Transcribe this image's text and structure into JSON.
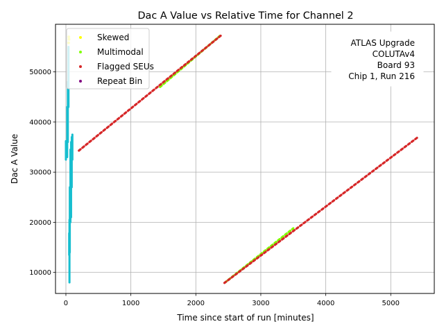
{
  "chart_data": {
    "type": "scatter",
    "title": "Dac A Value vs Relative Time for Channel 2",
    "xlabel": "Time since start of run [minutes]",
    "ylabel": "Dac A Value",
    "xlim": [
      -160,
      5670
    ],
    "ylim": [
      5800,
      59500
    ],
    "x_ticks": [
      0,
      1000,
      2000,
      3000,
      4000,
      5000
    ],
    "y_ticks": [
      10000,
      20000,
      30000,
      40000,
      50000
    ],
    "x_tick_labels": [
      "0",
      "1000",
      "2000",
      "3000",
      "4000",
      "5000"
    ],
    "y_tick_labels": [
      "10000",
      "20000",
      "30000",
      "40000",
      "50000"
    ],
    "grid": true,
    "legend_position": "top-left",
    "annotation": [
      "ATLAS Upgrade",
      "COLUTAv4",
      "Board 93",
      "Chip 1, Run 216"
    ],
    "series": [
      {
        "name": "Skewed",
        "color": "#ffff00",
        "render": "points",
        "points": [
          [
            45,
            57000
          ],
          [
            48,
            56500
          ],
          [
            42,
            55800
          ]
        ]
      },
      {
        "name": "Multimodal",
        "color": "#7fff00",
        "render": "segments",
        "segments": [
          [
            [
              1450,
              47000
            ],
            [
              2380,
              57300
            ]
          ],
          [
            [
              2450,
              8000
            ],
            [
              3500,
              18800
            ]
          ]
        ]
      },
      {
        "name": "Flagged SEUs",
        "color": "#d62728",
        "render": "segments",
        "segments": [
          [
            [
              200,
              34300
            ],
            [
              2400,
              57400
            ]
          ],
          [
            [
              2440,
              7900
            ],
            [
              5420,
              37000
            ]
          ]
        ]
      },
      {
        "name": "Repeat Bin",
        "color": "#800080",
        "render": "points",
        "points": []
      },
      {
        "name": "",
        "color": "#17becf",
        "render": "columns",
        "columns": [
          [
            0,
            32500,
            36200
          ],
          [
            20,
            33000,
            43000
          ],
          [
            30,
            36000,
            48000
          ],
          [
            40,
            43000,
            55000
          ],
          [
            50,
            13500,
            17800
          ],
          [
            55,
            8000,
            20500
          ],
          [
            60,
            14000,
            27000
          ],
          [
            70,
            20000,
            34500
          ],
          [
            80,
            21000,
            36000
          ],
          [
            90,
            27000,
            37000
          ],
          [
            100,
            32500,
            37500
          ]
        ]
      }
    ]
  }
}
